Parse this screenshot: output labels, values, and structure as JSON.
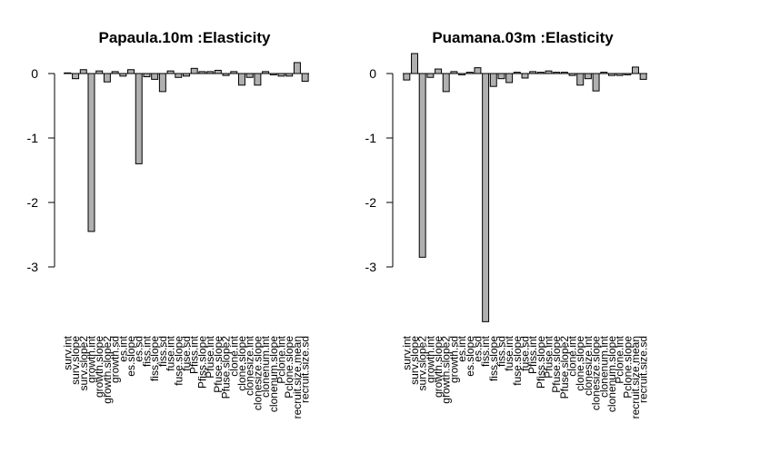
{
  "chart_data": [
    {
      "type": "bar",
      "title": "Papaula.10m :Elasticity",
      "xlabel": "",
      "ylabel": "",
      "ylim": [
        -3.85,
        0.35
      ],
      "yticks": [
        0,
        -1,
        -2,
        -3
      ],
      "categories": [
        "surv.int",
        "surv.slope",
        "surv.slope2",
        "growth.int",
        "growth.slope",
        "growth.slope2",
        "growth.sd",
        "es.int",
        "es.slope",
        "es.sd",
        "fiss.int",
        "fiss.slope",
        "fiss.sd",
        "fuse.int",
        "fuse.slope",
        "fuse.sd",
        "Pfiss.int",
        "Pfiss.slope",
        "Pfuse.int",
        "Pfuse.slope",
        "Pfuse.slope2",
        "clone.int",
        "clone.slope",
        "clonesize.int",
        "clonesize.slope",
        "clonenum.int",
        "clonenum.slope",
        "Pclone.int",
        "Pclone.slope",
        "recruit.size.mean",
        "recruit.size.sd"
      ],
      "values": [
        0.01,
        -0.08,
        0.06,
        -2.45,
        0.04,
        -0.13,
        0.03,
        -0.04,
        0.06,
        -1.4,
        -0.05,
        -0.09,
        -0.28,
        0.04,
        -0.06,
        -0.04,
        0.08,
        0.03,
        0.03,
        0.05,
        -0.03,
        0.03,
        -0.18,
        -0.06,
        -0.18,
        0.03,
        -0.02,
        -0.04,
        -0.04,
        0.17,
        -0.12
      ]
    },
    {
      "type": "bar",
      "title": "Puamana.03m :Elasticity",
      "xlabel": "",
      "ylabel": "",
      "ylim": [
        -3.85,
        0.35
      ],
      "yticks": [
        0,
        -1,
        -2,
        -3
      ],
      "categories": [
        "surv.int",
        "surv.slope",
        "surv.slope2",
        "growth.int",
        "growth.slope",
        "growth.slope2",
        "growth.sd",
        "es.int",
        "es.slope",
        "es.sd",
        "fiss.int",
        "fiss.slope",
        "fiss.sd",
        "fuse.int",
        "fuse.slope",
        "fuse.sd",
        "Pfiss.int",
        "Pfiss.slope",
        "Pfuse.int",
        "Pfuse.slope",
        "Pfuse.slope2",
        "clone.int",
        "clone.slope",
        "clonesize.int",
        "clonesize.slope",
        "clonenum.int",
        "clonenum.slope",
        "Pclone.int",
        "Pclone.slope",
        "recruit.size.mean",
        "recruit.size.sd"
      ],
      "values": [
        -0.1,
        0.31,
        -2.85,
        -0.06,
        0.07,
        -0.28,
        0.03,
        -0.02,
        0.02,
        0.09,
        -3.85,
        -0.2,
        -0.08,
        -0.14,
        0.02,
        -0.07,
        0.03,
        0.02,
        0.04,
        0.02,
        0.02,
        -0.03,
        -0.18,
        -0.08,
        -0.27,
        0.02,
        -0.03,
        -0.03,
        -0.02,
        0.1,
        -0.09
      ]
    }
  ],
  "colors": {
    "bar_fill": "#b0b0b0",
    "bar_stroke": "#000000",
    "axis": "#000000"
  }
}
